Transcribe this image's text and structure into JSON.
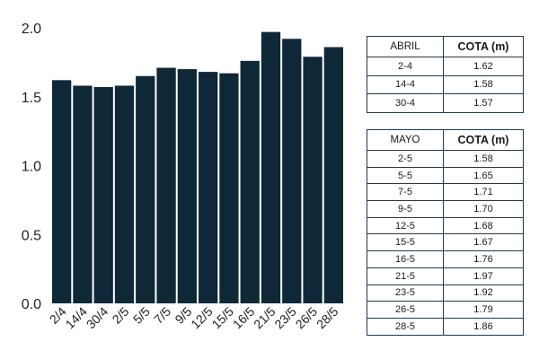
{
  "chart_data": {
    "type": "bar",
    "categories": [
      "2/4",
      "14/4",
      "30/4",
      "2/5",
      "5/5",
      "7/5",
      "9/5",
      "12/5",
      "15/5",
      "16/5",
      "21/5",
      "23/5",
      "26/5",
      "28/5"
    ],
    "values": [
      1.62,
      1.58,
      1.57,
      1.58,
      1.65,
      1.71,
      1.7,
      1.68,
      1.67,
      1.76,
      1.97,
      1.92,
      1.79,
      1.86
    ],
    "title": "",
    "xlabel": "",
    "ylabel": "",
    "ylim": [
      0,
      2.0
    ],
    "yticks": [
      "0.0",
      "0.5",
      "1.0",
      "1.5",
      "2.0"
    ],
    "bar_color": "#0f2838",
    "grid": false,
    "legend": "none"
  },
  "tables": {
    "abril": {
      "headers": [
        "ABRIL",
        "COTA (m)"
      ],
      "rows": [
        [
          "2-4",
          "1.62"
        ],
        [
          "14-4",
          "1.58"
        ],
        [
          "30-4",
          "1.57"
        ]
      ]
    },
    "mayo": {
      "headers": [
        "MAYO",
        "COTA (m)"
      ],
      "rows": [
        [
          "2-5",
          "1.58"
        ],
        [
          "5-5",
          "1.65"
        ],
        [
          "7-5",
          "1.71"
        ],
        [
          "9-5",
          "1.70"
        ],
        [
          "12-5",
          "1.68"
        ],
        [
          "15-5",
          "1.67"
        ],
        [
          "16-5",
          "1.76"
        ],
        [
          "21-5",
          "1.97"
        ],
        [
          "23-5",
          "1.92"
        ],
        [
          "26-5",
          "1.79"
        ],
        [
          "28-5",
          "1.86"
        ]
      ]
    }
  }
}
